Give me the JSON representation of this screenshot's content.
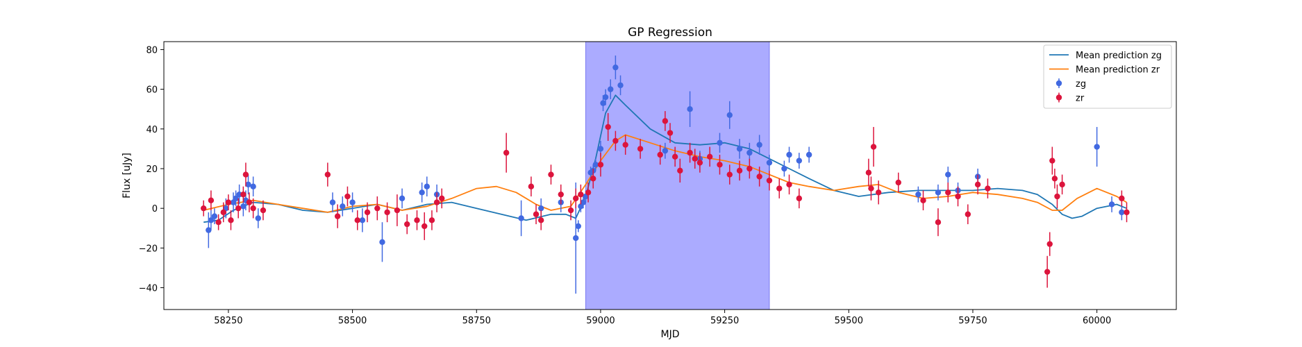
{
  "chart_data": {
    "type": "scatter",
    "title": "GP Regression",
    "xlabel": "MJD",
    "ylabel": "Flux [uJy]",
    "xlim": [
      58120,
      60160
    ],
    "ylim": [
      -51,
      84
    ],
    "xticks": [
      58250,
      58500,
      58750,
      59000,
      59250,
      59500,
      59750,
      60000
    ],
    "yticks": [
      -40,
      -20,
      0,
      20,
      40,
      60,
      80
    ],
    "grid": false,
    "legend_position": "top-right",
    "highlight_region": {
      "x": [
        58970,
        59340
      ],
      "color": "#a6a6ff"
    },
    "colors": {
      "zg_line": "#1f77b4",
      "zr_line": "#ff7f0e",
      "zg_points": "#4169e1",
      "zr_points": "#dc143c"
    },
    "legend": [
      {
        "label": "Mean prediction zg",
        "kind": "line",
        "color": "#1f77b4"
      },
      {
        "label": "Mean prediction zr",
        "kind": "line",
        "color": "#ff7f0e"
      },
      {
        "label": "zg",
        "kind": "errorbar",
        "color": "#4169e1"
      },
      {
        "label": "zr",
        "kind": "errorbar",
        "color": "#dc143c"
      }
    ],
    "series": [
      {
        "name": "Mean prediction zg",
        "kind": "line",
        "x": [
          58200,
          58230,
          58260,
          58300,
          58350,
          58400,
          58450,
          58500,
          58550,
          58600,
          58650,
          58700,
          58750,
          58800,
          58850,
          58900,
          58930,
          58950,
          58970,
          58990,
          59010,
          59030,
          59050,
          59100,
          59150,
          59200,
          59250,
          59300,
          59340,
          59380,
          59420,
          59470,
          59520,
          59580,
          59640,
          59700,
          59750,
          59800,
          59850,
          59880,
          59910,
          59930,
          59950,
          59970,
          60000,
          60040,
          60060
        ],
        "y": [
          -7,
          -6,
          -1,
          3,
          2,
          -1,
          -2,
          0,
          2,
          -1,
          2,
          3,
          0,
          -3,
          -6,
          -3,
          -3,
          -5,
          6,
          25,
          48,
          57,
          52,
          40,
          33,
          32,
          33,
          30,
          25,
          20,
          15,
          9,
          6,
          8,
          9,
          9,
          9,
          10,
          9,
          7,
          2,
          -3,
          -5,
          -4,
          0,
          2,
          0
        ]
      },
      {
        "name": "Mean prediction zr",
        "kind": "line",
        "x": [
          58200,
          58250,
          58300,
          58350,
          58400,
          58450,
          58500,
          58550,
          58600,
          58650,
          58700,
          58750,
          58790,
          58830,
          58870,
          58900,
          58940,
          58970,
          59000,
          59030,
          59050,
          59100,
          59150,
          59200,
          59250,
          59300,
          59340,
          59380,
          59420,
          59470,
          59520,
          59560,
          59600,
          59650,
          59700,
          59750,
          59800,
          59850,
          59880,
          59910,
          59930,
          59960,
          60000,
          60040,
          60060
        ],
        "y": [
          -1,
          2,
          4,
          2,
          0,
          -2,
          1,
          2,
          -1,
          1,
          5,
          10,
          11,
          8,
          2,
          -1,
          1,
          12,
          24,
          34,
          37,
          33,
          29,
          26,
          24,
          21,
          17,
          13,
          11,
          9,
          11,
          12,
          8,
          5,
          6,
          8,
          7,
          5,
          3,
          -1,
          -1,
          5,
          10,
          6,
          3
        ]
      },
      {
        "name": "zg",
        "kind": "errorbar",
        "x": [
          58210,
          58215,
          58222,
          58245,
          58260,
          58265,
          58272,
          58280,
          58285,
          58290,
          58300,
          58310,
          58460,
          58480,
          58500,
          58520,
          58560,
          58600,
          58640,
          58650,
          58670,
          58840,
          58880,
          58920,
          58950,
          58955,
          58960,
          58965,
          58970,
          58980,
          58985,
          58990,
          59000,
          59005,
          59010,
          59020,
          59030,
          59040,
          59130,
          59180,
          59200,
          59240,
          59260,
          59280,
          59300,
          59320,
          59340,
          59370,
          59380,
          59400,
          59420,
          59640,
          59680,
          59700,
          59720,
          59760,
          60000,
          60030,
          60050
        ],
        "y": [
          -11,
          -6,
          -4,
          0,
          3,
          5,
          7,
          1,
          4,
          12,
          11,
          -5,
          3,
          1,
          3,
          -6,
          -17,
          5,
          8,
          11,
          7,
          -5,
          0,
          3,
          -15,
          -9,
          1,
          3,
          6,
          18,
          19,
          22,
          30,
          53,
          56,
          60,
          71,
          62,
          29,
          50,
          25,
          33,
          47,
          30,
          28,
          32,
          23,
          20,
          27,
          24,
          27,
          7,
          8,
          17,
          9,
          16,
          31,
          2,
          -2
        ],
        "err": [
          9,
          5,
          4,
          5,
          5,
          4,
          5,
          5,
          5,
          5,
          5,
          5,
          5,
          5,
          5,
          6,
          10,
          5,
          5,
          5,
          5,
          9,
          5,
          5,
          28,
          3,
          3,
          3,
          3,
          3,
          3,
          3,
          4,
          4,
          4,
          5,
          6,
          5,
          4,
          9,
          4,
          5,
          7,
          5,
          5,
          5,
          4,
          4,
          4,
          4,
          4,
          4,
          4,
          4,
          4,
          4,
          10,
          4,
          4
        ]
      },
      {
        "name": "zr",
        "kind": "errorbar",
        "x": [
          58200,
          58215,
          58230,
          58240,
          58250,
          58255,
          58270,
          58280,
          58285,
          58292,
          58300,
          58320,
          58450,
          58470,
          58490,
          58510,
          58530,
          58550,
          58570,
          58590,
          58610,
          58630,
          58645,
          58660,
          58670,
          58680,
          58810,
          58860,
          58870,
          58880,
          58900,
          58920,
          58940,
          58950,
          58960,
          58975,
          58985,
          59000,
          59015,
          59030,
          59050,
          59080,
          59120,
          59130,
          59140,
          59150,
          59160,
          59180,
          59190,
          59200,
          59220,
          59240,
          59260,
          59280,
          59300,
          59320,
          59340,
          59360,
          59380,
          59400,
          59540,
          59545,
          59550,
          59560,
          59600,
          59650,
          59680,
          59700,
          59720,
          59740,
          59760,
          59780,
          59900,
          59905,
          59910,
          59915,
          59920,
          59930,
          60050,
          60060
        ],
        "y": [
          0,
          4,
          -7,
          -2,
          3,
          -6,
          0,
          7,
          17,
          3,
          0,
          -1,
          17,
          -4,
          6,
          -6,
          -2,
          0,
          -2,
          -1,
          -8,
          -6,
          -9,
          -6,
          3,
          5,
          28,
          11,
          -3,
          -6,
          17,
          7,
          -1,
          5,
          7,
          8,
          15,
          22,
          41,
          34,
          32,
          30,
          27,
          44,
          38,
          26,
          19,
          28,
          25,
          23,
          26,
          22,
          17,
          19,
          20,
          16,
          14,
          10,
          12,
          5,
          18,
          10,
          31,
          8,
          13,
          4,
          -7,
          8,
          6,
          -3,
          12,
          10,
          -32,
          -18,
          24,
          15,
          6,
          12,
          5,
          -2
        ],
        "err": [
          4,
          5,
          4,
          5,
          4,
          5,
          5,
          4,
          6,
          5,
          5,
          5,
          6,
          6,
          5,
          5,
          5,
          6,
          5,
          8,
          5,
          5,
          7,
          5,
          5,
          5,
          10,
          5,
          5,
          5,
          5,
          5,
          5,
          5,
          5,
          5,
          5,
          6,
          7,
          5,
          5,
          5,
          5,
          5,
          5,
          5,
          6,
          5,
          5,
          5,
          5,
          5,
          5,
          5,
          5,
          5,
          5,
          5,
          5,
          5,
          7,
          6,
          10,
          6,
          5,
          5,
          7,
          5,
          5,
          5,
          5,
          5,
          8,
          6,
          7,
          5,
          6,
          5,
          4,
          5
        ]
      }
    ]
  }
}
